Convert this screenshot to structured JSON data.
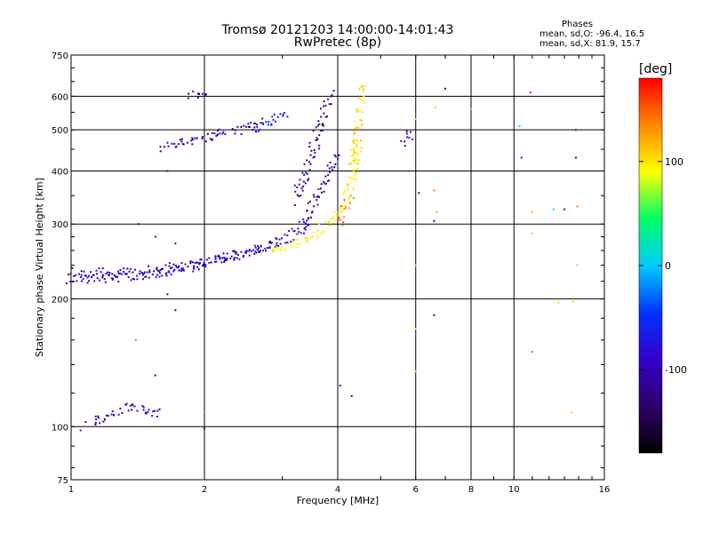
{
  "header": {
    "title_line1": "Tromsø 20121203 14:00:00-14:01:43",
    "title_line2": "RwPretec (8p)",
    "phases_title": "Phases",
    "phases_o": "mean, sd,O: -96.4, 16.5",
    "phases_x": "mean, sd,X:  81.9, 15.7"
  },
  "colorbar": {
    "unit": "[deg]",
    "ticks": [
      "100",
      "0",
      "-100"
    ],
    "tick_values": [
      100,
      0,
      -100
    ],
    "range": [
      -180,
      180
    ],
    "colors": [
      "#000000",
      "#2e0066",
      "#3300cc",
      "#0033ff",
      "#00ccff",
      "#00ff66",
      "#ffff00",
      "#ff8800",
      "#ff0000"
    ]
  },
  "chart_data": {
    "type": "scatter",
    "xlabel": "Frequency [MHz]",
    "ylabel": "Stationary phase Virtual Height [km]",
    "xscale": "log",
    "yscale": "log",
    "xlim": [
      1,
      16
    ],
    "ylim": [
      75,
      750
    ],
    "xticks": [
      1,
      2,
      4,
      6,
      8,
      10,
      16
    ],
    "xtick_labels": [
      "1",
      "2",
      "4",
      "6",
      "8",
      "10",
      "16"
    ],
    "yticks": [
      75,
      100,
      200,
      300,
      400,
      500,
      600,
      750
    ],
    "ytick_labels": [
      "75",
      "100",
      "200",
      "300",
      "400",
      "500",
      "600",
      "750"
    ],
    "grid": true,
    "color_by": "phase_deg",
    "traces": [
      {
        "x": [
          1.0,
          1.2,
          1.5,
          1.8,
          2.1,
          2.5,
          2.9,
          3.2,
          3.45
        ],
        "y": [
          222,
          223,
          228,
          235,
          245,
          257,
          270,
          285,
          305
        ],
        "phase": -80
      },
      {
        "x": [
          1.0,
          1.3,
          1.6,
          1.9,
          2.3,
          2.7,
          3.0
        ],
        "y": [
          232,
          230,
          236,
          242,
          252,
          262,
          275
        ],
        "phase": -105
      },
      {
        "x": [
          3.25,
          3.35,
          3.45,
          3.55,
          3.65,
          3.75,
          3.85
        ],
        "y": [
          340,
          380,
          420,
          460,
          510,
          560,
          610
        ],
        "phase": -115
      },
      {
        "x": [
          3.3,
          3.45,
          3.6,
          3.75,
          3.9,
          4.0
        ],
        "y": [
          290,
          320,
          350,
          380,
          410,
          440
        ],
        "phase": -110
      },
      {
        "x": [
          2.8,
          3.1,
          3.35,
          3.6,
          3.8,
          4.0,
          4.15,
          4.3,
          4.4,
          4.45
        ],
        "y": [
          258,
          265,
          275,
          288,
          300,
          320,
          340,
          370,
          420,
          480
        ],
        "phase": 95
      },
      {
        "x": [
          4.3,
          4.4,
          4.45,
          4.5,
          4.55
        ],
        "y": [
          400,
          460,
          520,
          580,
          640
        ],
        "phase": 105
      },
      {
        "x": [
          4.0,
          4.1,
          4.2,
          4.3
        ],
        "y": [
          300,
          320,
          335,
          350
        ],
        "phase": 140
      },
      {
        "x": [
          1.6,
          1.8,
          2.0,
          2.2,
          2.4,
          2.6,
          2.75
        ],
        "y": [
          455,
          470,
          480,
          490,
          500,
          515,
          525
        ],
        "phase": -110
      },
      {
        "x": [
          2.6,
          2.8,
          3.0,
          3.1
        ],
        "y": [
          500,
          520,
          540,
          550
        ],
        "phase": -60
      },
      {
        "x": [
          1.85,
          1.95,
          2.05
        ],
        "y": [
          605,
          610,
          612
        ],
        "phase": -110
      },
      {
        "x": [
          1.1,
          1.2,
          1.3,
          1.4,
          1.5,
          1.6
        ],
        "y": [
          103,
          105,
          110,
          112,
          106,
          108
        ],
        "phase": -100
      },
      {
        "x": [
          5.65,
          5.75,
          5.85
        ],
        "y": [
          460,
          480,
          495
        ],
        "phase": -80
      }
    ],
    "scattered_points": [
      {
        "x": 1.05,
        "y": 98,
        "phase": -60
      },
      {
        "x": 1.42,
        "y": 300,
        "phase": -110
      },
      {
        "x": 1.55,
        "y": 280,
        "phase": -110
      },
      {
        "x": 1.72,
        "y": 270,
        "phase": -110
      },
      {
        "x": 1.72,
        "y": 188,
        "phase": -120
      },
      {
        "x": 1.4,
        "y": 160,
        "phase": 150
      },
      {
        "x": 1.55,
        "y": 132,
        "phase": -110
      },
      {
        "x": 1.65,
        "y": 400,
        "phase": -110
      },
      {
        "x": 1.65,
        "y": 205,
        "phase": -110
      },
      {
        "x": 2.0,
        "y": 99,
        "phase": -110
      },
      {
        "x": 2.0,
        "y": 108,
        "phase": 140
      },
      {
        "x": 3.2,
        "y": 370,
        "phase": -110
      },
      {
        "x": 4.05,
        "y": 125,
        "phase": -110
      },
      {
        "x": 4.3,
        "y": 118,
        "phase": -110
      },
      {
        "x": 6.0,
        "y": 530,
        "phase": 100
      },
      {
        "x": 6.1,
        "y": 355,
        "phase": -120
      },
      {
        "x": 6.0,
        "y": 240,
        "phase": 100
      },
      {
        "x": 6.0,
        "y": 170,
        "phase": 90
      },
      {
        "x": 6.0,
        "y": 135,
        "phase": 100
      },
      {
        "x": 6.6,
        "y": 360,
        "phase": 140
      },
      {
        "x": 6.7,
        "y": 320,
        "phase": 130
      },
      {
        "x": 6.6,
        "y": 305,
        "phase": -110
      },
      {
        "x": 6.6,
        "y": 183,
        "phase": -110
      },
      {
        "x": 6.65,
        "y": 565,
        "phase": 110
      },
      {
        "x": 7.0,
        "y": 625,
        "phase": -110
      },
      {
        "x": 8.0,
        "y": 560,
        "phase": 60
      },
      {
        "x": 10.3,
        "y": 510,
        "phase": 30
      },
      {
        "x": 10.4,
        "y": 430,
        "phase": -60
      },
      {
        "x": 10.9,
        "y": 612,
        "phase": 170
      },
      {
        "x": 11.0,
        "y": 320,
        "phase": 110
      },
      {
        "x": 11.0,
        "y": 285,
        "phase": 110
      },
      {
        "x": 11.0,
        "y": 150,
        "phase": 150
      },
      {
        "x": 12.3,
        "y": 325,
        "phase": 30
      },
      {
        "x": 13.0,
        "y": 325,
        "phase": -60
      },
      {
        "x": 13.8,
        "y": 500,
        "phase": -60
      },
      {
        "x": 13.8,
        "y": 430,
        "phase": -110
      },
      {
        "x": 13.9,
        "y": 330,
        "phase": 140
      },
      {
        "x": 13.9,
        "y": 240,
        "phase": 60
      },
      {
        "x": 13.6,
        "y": 197,
        "phase": 110
      },
      {
        "x": 13.5,
        "y": 108,
        "phase": 110
      },
      {
        "x": 12.6,
        "y": 196,
        "phase": 110
      }
    ]
  }
}
